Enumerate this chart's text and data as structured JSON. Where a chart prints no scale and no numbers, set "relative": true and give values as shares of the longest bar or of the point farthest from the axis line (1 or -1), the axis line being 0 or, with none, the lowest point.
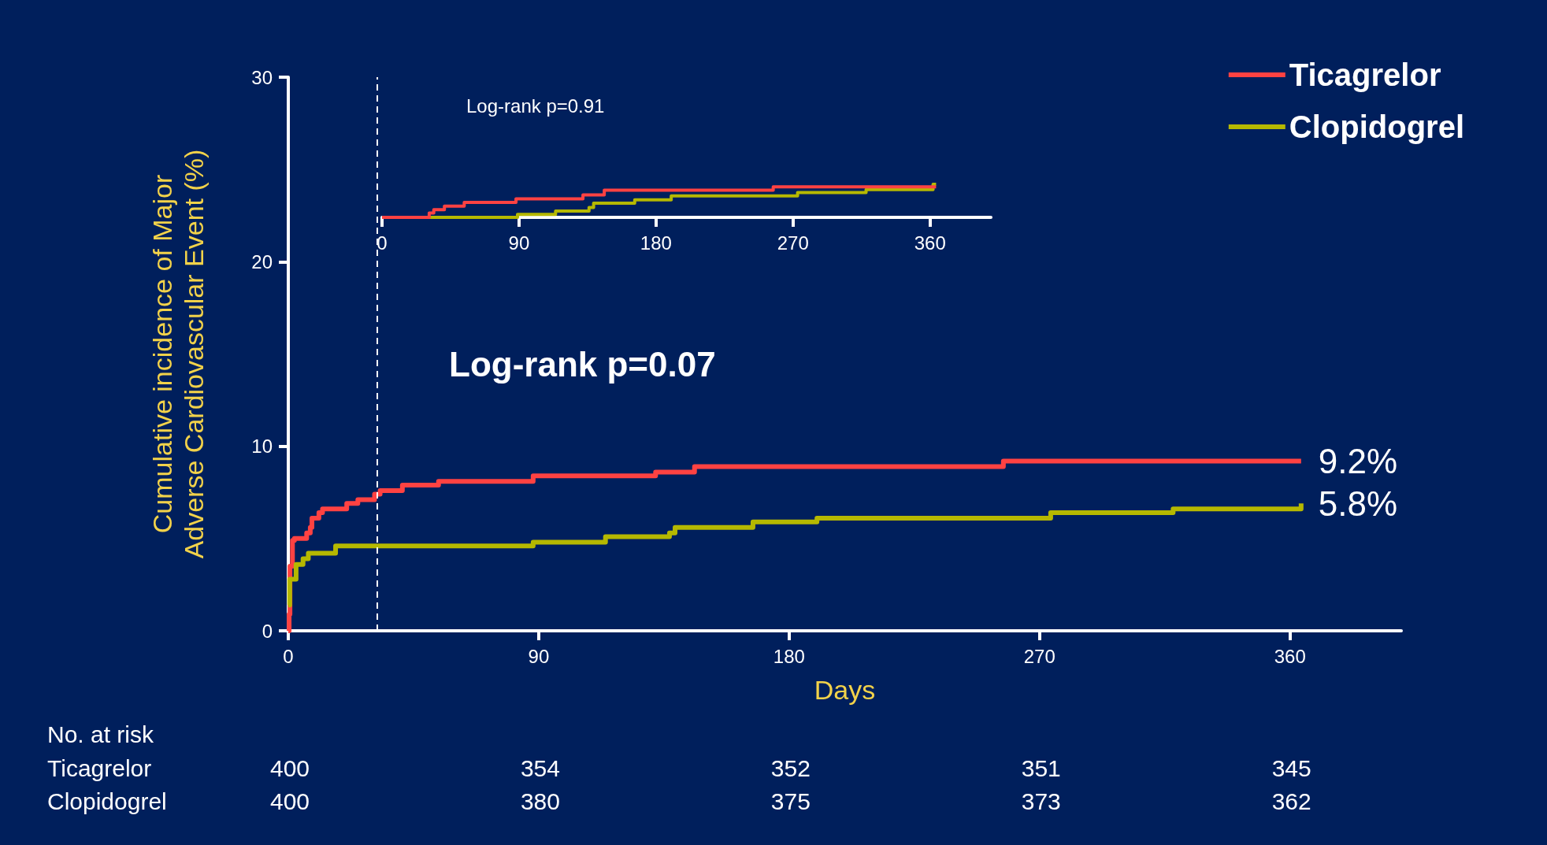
{
  "chart_data": [
    {
      "type": "step",
      "xlabel": "Days",
      "ylabel": "Cumulative incidence of Major Adverse Cardiovascular Event (%)",
      "xlim": [
        0,
        400
      ],
      "xticks": [
        0,
        90,
        180,
        270,
        360
      ],
      "ylim": [
        0,
        30
      ],
      "yticks": [
        0,
        10,
        20,
        30
      ],
      "series": [
        {
          "name": "Ticagrelor",
          "color": "#ff4242",
          "x": [
            0,
            0.3,
            0.6,
            1.5,
            2.2,
            6.6,
            7.9,
            8.5,
            11,
            12.3,
            21,
            25,
            31,
            33,
            41,
            54,
            88,
            132,
            146,
            257,
            364
          ],
          "values": [
            0,
            0.9,
            3.5,
            4.9,
            5.0,
            5.3,
            5.6,
            6.1,
            6.4,
            6.6,
            6.9,
            7.1,
            7.4,
            7.6,
            7.9,
            8.1,
            8.4,
            8.6,
            8.9,
            9.2,
            9.2
          ]
        },
        {
          "name": "Clopidogrel",
          "color": "#b5b800",
          "x": [
            0,
            0.5,
            2.8,
            5.3,
            7.2,
            17,
            88,
            114,
            137,
            139,
            167,
            190,
            274,
            318,
            364
          ],
          "values": [
            1.4,
            2.8,
            3.6,
            3.9,
            4.2,
            4.6,
            4.8,
            5.1,
            5.3,
            5.6,
            5.9,
            6.1,
            6.4,
            6.6,
            6.9
          ]
        }
      ],
      "ref_lines": [
        {
          "axis": "x",
          "value": 32,
          "color": "#ffffff",
          "line_style": "dashed"
        }
      ],
      "annotations": [
        "Log-rank p=0.07",
        {
          "text": "9.2%",
          "x": 364,
          "y": 9.2
        },
        {
          "text": "5.8%",
          "x": 364,
          "y": 6.9
        },
        "No. at risk",
        "Ticagrelor",
        "400",
        "354",
        "352",
        "351",
        "345",
        "Clopidogrel",
        "400",
        "380",
        "375",
        "373",
        "362"
      ],
      "legend": "top right",
      "grid": false
    },
    {
      "type": "step",
      "relative": true,
      "tick_labels": "x",
      "xlim": [
        0,
        400
      ],
      "xticks": [
        0,
        90,
        180,
        270,
        360
      ],
      "series": [
        {
          "color": "#b5b800",
          "x": [
            0,
            89,
            114,
            136,
            139,
            166,
            190,
            273,
            318,
            362,
            364
          ],
          "values": [
            0,
            0.09,
            0.19,
            0.3,
            0.43,
            0.53,
            0.65,
            0.75,
            0.84,
            1,
            1
          ]
        },
        {
          "color": "#ff4242",
          "x": [
            0,
            31,
            34,
            41,
            54,
            88,
            132,
            146,
            257,
            364
          ],
          "values": [
            0,
            0.13,
            0.23,
            0.34,
            0.45,
            0.56,
            0.68,
            0.82,
            0.92,
            0.92
          ]
        }
      ],
      "annotations": [
        "Log-rank p=0.91"
      ],
      "grid": false
    }
  ]
}
